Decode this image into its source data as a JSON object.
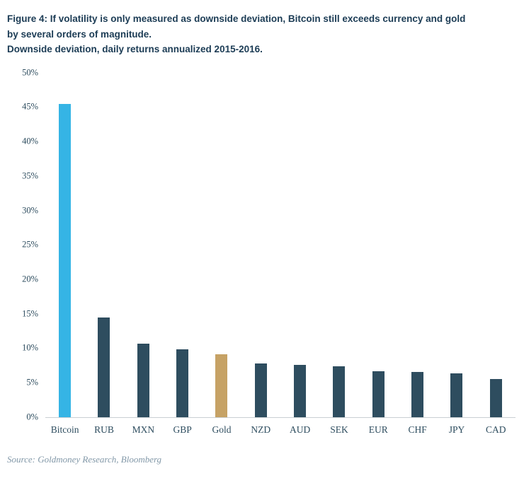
{
  "figure": {
    "title_line1": "Figure 4: If volatility is only measured as downside deviation, Bitcoin still exceeds currency and gold",
    "title_line2": "by several orders of magnitude.",
    "subtitle": "Downside deviation, daily returns annualized 2015-2016.",
    "source": "Source: Goldmoney Research, Bloomberg"
  },
  "colors": {
    "title_text": "#1c3c55",
    "bar_default": "#2e4d5f",
    "bar_bitcoin": "#35b4e5",
    "bar_gold": "#c6a265",
    "axis_text": "#2e4d5f",
    "axis_line": "#c9cfd3",
    "source_text": "#8298a8"
  },
  "chart_data": {
    "type": "bar",
    "title": "Downside deviation, daily returns annualized 2015-2016",
    "categories": [
      "Bitcoin",
      "RUB",
      "MXN",
      "GBP",
      "Gold",
      "NZD",
      "AUD",
      "SEK",
      "EUR",
      "CHF",
      "JPY",
      "CAD"
    ],
    "values": [
      45.5,
      14.5,
      10.7,
      9.8,
      9.1,
      7.8,
      7.6,
      7.4,
      6.7,
      6.5,
      6.3,
      5.5
    ],
    "unit": "%",
    "ylim": [
      0,
      50
    ],
    "ytick_step": 5,
    "ytick_suffix": "%",
    "highlight_bars": {
      "Bitcoin": "bar_bitcoin",
      "Gold": "bar_gold"
    },
    "grid": false,
    "legend": false,
    "xlabel": "",
    "ylabel": ""
  }
}
